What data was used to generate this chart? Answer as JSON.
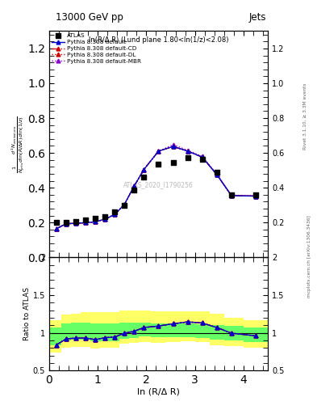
{
  "title_left": "13000 GeV pp",
  "title_right": "Jets",
  "panel_title": "ln(R/Δ R) (Lund plane 1.80<ln(1/z)<2.08)",
  "watermark": "ATLAS_2020_I1790256",
  "right_label_top": "Rivet 3.1.10, ≥ 3.3M events",
  "right_label_bottom": "mcplots.cern.ch [arXiv:1306.3436]",
  "ylabel_main": "$\\frac{1}{N_{jets}}\\frac{d^2 N_{emissions}}{d\\ln (R/\\Delta R)\\, d\\ln (1/z)}$",
  "ylabel_ratio": "Ratio to ATLAS",
  "xlabel": "ln (R/Δ R)",
  "xlim": [
    0,
    4.5
  ],
  "ylim_main": [
    0,
    1.3
  ],
  "ylim_ratio": [
    0.5,
    2.0
  ],
  "atlas_x": [
    0.15,
    0.35,
    0.55,
    0.75,
    0.95,
    1.15,
    1.35,
    1.55,
    1.75,
    1.95,
    2.25,
    2.55,
    2.85,
    3.15,
    3.45,
    3.75,
    4.25
  ],
  "atlas_y": [
    0.2,
    0.2,
    0.205,
    0.213,
    0.222,
    0.232,
    0.26,
    0.3,
    0.385,
    0.462,
    0.535,
    0.545,
    0.573,
    0.562,
    0.49,
    0.358,
    0.358
  ],
  "pythia_x": [
    0.15,
    0.35,
    0.55,
    0.75,
    0.95,
    1.15,
    1.35,
    1.55,
    1.75,
    1.95,
    2.25,
    2.55,
    2.85,
    3.15,
    3.45,
    3.75,
    4.25
  ],
  "pythia_default_y": [
    0.165,
    0.193,
    0.196,
    0.199,
    0.204,
    0.22,
    0.246,
    0.305,
    0.41,
    0.505,
    0.61,
    0.637,
    0.61,
    0.576,
    0.475,
    0.355,
    0.352
  ],
  "pythia_cd_y": [
    0.165,
    0.193,
    0.196,
    0.199,
    0.204,
    0.22,
    0.246,
    0.305,
    0.41,
    0.505,
    0.61,
    0.637,
    0.61,
    0.576,
    0.475,
    0.355,
    0.352
  ],
  "pythia_dl_y": [
    0.165,
    0.193,
    0.196,
    0.199,
    0.204,
    0.22,
    0.246,
    0.305,
    0.41,
    0.505,
    0.61,
    0.637,
    0.61,
    0.576,
    0.475,
    0.355,
    0.352
  ],
  "pythia_mbr_y": [
    0.165,
    0.193,
    0.196,
    0.199,
    0.204,
    0.22,
    0.246,
    0.305,
    0.41,
    0.505,
    0.61,
    0.647,
    0.615,
    0.58,
    0.478,
    0.357,
    0.354
  ],
  "ratio_default_y": [
    0.84,
    0.92,
    0.93,
    0.93,
    0.91,
    0.935,
    0.945,
    0.995,
    1.02,
    1.07,
    1.09,
    1.12,
    1.145,
    1.13,
    1.07,
    0.995,
    0.96
  ],
  "ratio_cd_y": [
    0.84,
    0.92,
    0.93,
    0.93,
    0.91,
    0.935,
    0.945,
    0.995,
    1.02,
    1.07,
    1.09,
    1.12,
    1.145,
    1.13,
    1.07,
    0.995,
    0.96
  ],
  "ratio_dl_y": [
    0.84,
    0.92,
    0.93,
    0.93,
    0.91,
    0.935,
    0.945,
    0.995,
    1.02,
    1.07,
    1.09,
    1.12,
    1.145,
    1.13,
    1.07,
    0.995,
    0.96
  ],
  "ratio_mbr_y": [
    0.84,
    0.92,
    0.93,
    0.93,
    0.91,
    0.935,
    0.945,
    0.995,
    1.02,
    1.07,
    1.09,
    1.12,
    1.145,
    1.13,
    1.07,
    0.995,
    0.96
  ],
  "band_yellow_lo": [
    0.74,
    0.8,
    0.81,
    0.81,
    0.79,
    0.8,
    0.8,
    0.855,
    0.87,
    0.88,
    0.87,
    0.88,
    0.885,
    0.88,
    0.84,
    0.82,
    0.8
  ],
  "band_yellow_hi": [
    1.17,
    1.24,
    1.25,
    1.27,
    1.27,
    1.27,
    1.27,
    1.3,
    1.3,
    1.3,
    1.29,
    1.29,
    1.285,
    1.28,
    1.25,
    1.2,
    1.17
  ],
  "band_green_lo": [
    0.84,
    0.9,
    0.91,
    0.91,
    0.89,
    0.89,
    0.89,
    0.92,
    0.935,
    0.95,
    0.94,
    0.94,
    0.94,
    0.93,
    0.91,
    0.9,
    0.88
  ],
  "band_green_hi": [
    1.07,
    1.12,
    1.13,
    1.13,
    1.12,
    1.12,
    1.12,
    1.13,
    1.13,
    1.13,
    1.12,
    1.12,
    1.12,
    1.11,
    1.1,
    1.09,
    1.07
  ],
  "color_default": "#0000cc",
  "color_cd": "#cc0000",
  "color_dl": "#cc0000",
  "color_mbr": "#8800cc",
  "marker_size": 3.5,
  "line_width": 1.0,
  "yticks_main": [
    0,
    0.2,
    0.4,
    0.6,
    0.8,
    1.0,
    1.2
  ],
  "yticks_ratio": [
    0.5,
    1.0,
    1.5,
    2.0
  ],
  "xticks": [
    0,
    1,
    2,
    3,
    4
  ]
}
